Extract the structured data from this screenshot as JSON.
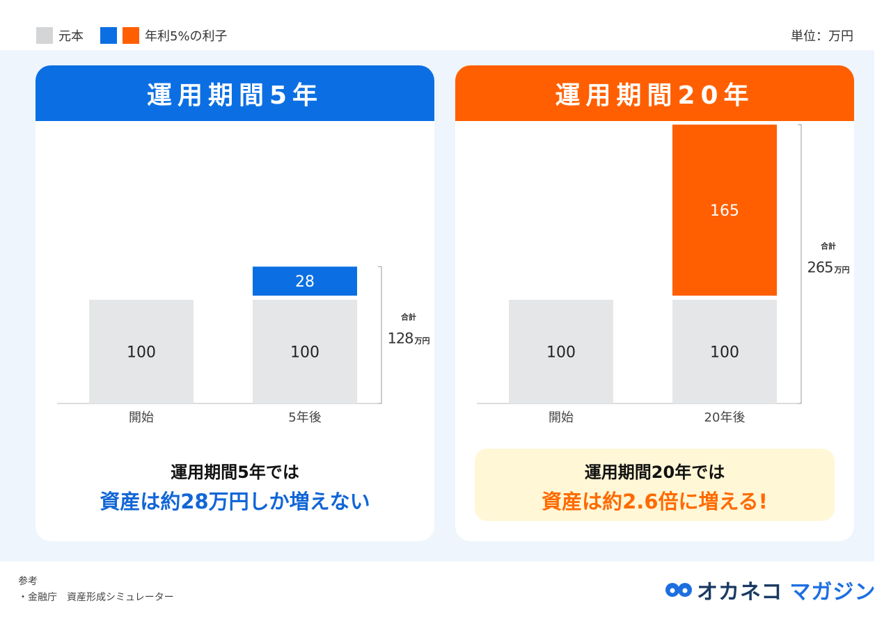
{
  "legend": {
    "principal_label": "元本",
    "interest_label": "年利5%の利子",
    "colors": {
      "principal": "#e5e6e8",
      "interest_5y": "#0b6fe3",
      "interest_20y": "#ff5f00"
    }
  },
  "unit_label": "単位：万円",
  "chart_data": [
    {
      "type": "bar",
      "title": "運用期間5年",
      "categories": [
        "開始",
        "5年後"
      ],
      "series": [
        {
          "values": [
            100,
            100
          ]
        },
        {
          "values": [
            0,
            28
          ]
        }
      ],
      "total": {
        "label": "合計",
        "value": "128",
        "unit": "万円"
      },
      "ylim": [
        0,
        200
      ],
      "message": {
        "line1": "運用期間5年では",
        "line2": "資産は約28万円しか増えない"
      }
    },
    {
      "type": "bar",
      "title": "運用期間20年",
      "categories": [
        "開始",
        "20年後"
      ],
      "series": [
        {
          "values": [
            100,
            100
          ]
        },
        {
          "values": [
            0,
            165
          ]
        }
      ],
      "total": {
        "label": "合計",
        "value": "265",
        "unit": "万円"
      },
      "ylim": [
        0,
        265
      ],
      "message": {
        "line1": "運用期間20年では",
        "line2": "資産は約2.6倍に増える!"
      }
    }
  ],
  "footer": {
    "ref_heading": "参考",
    "ref_item": "・金融庁　資産形成シミュレーター"
  },
  "logo": {
    "part1": "オカネコ",
    "part2": "マガジン"
  }
}
